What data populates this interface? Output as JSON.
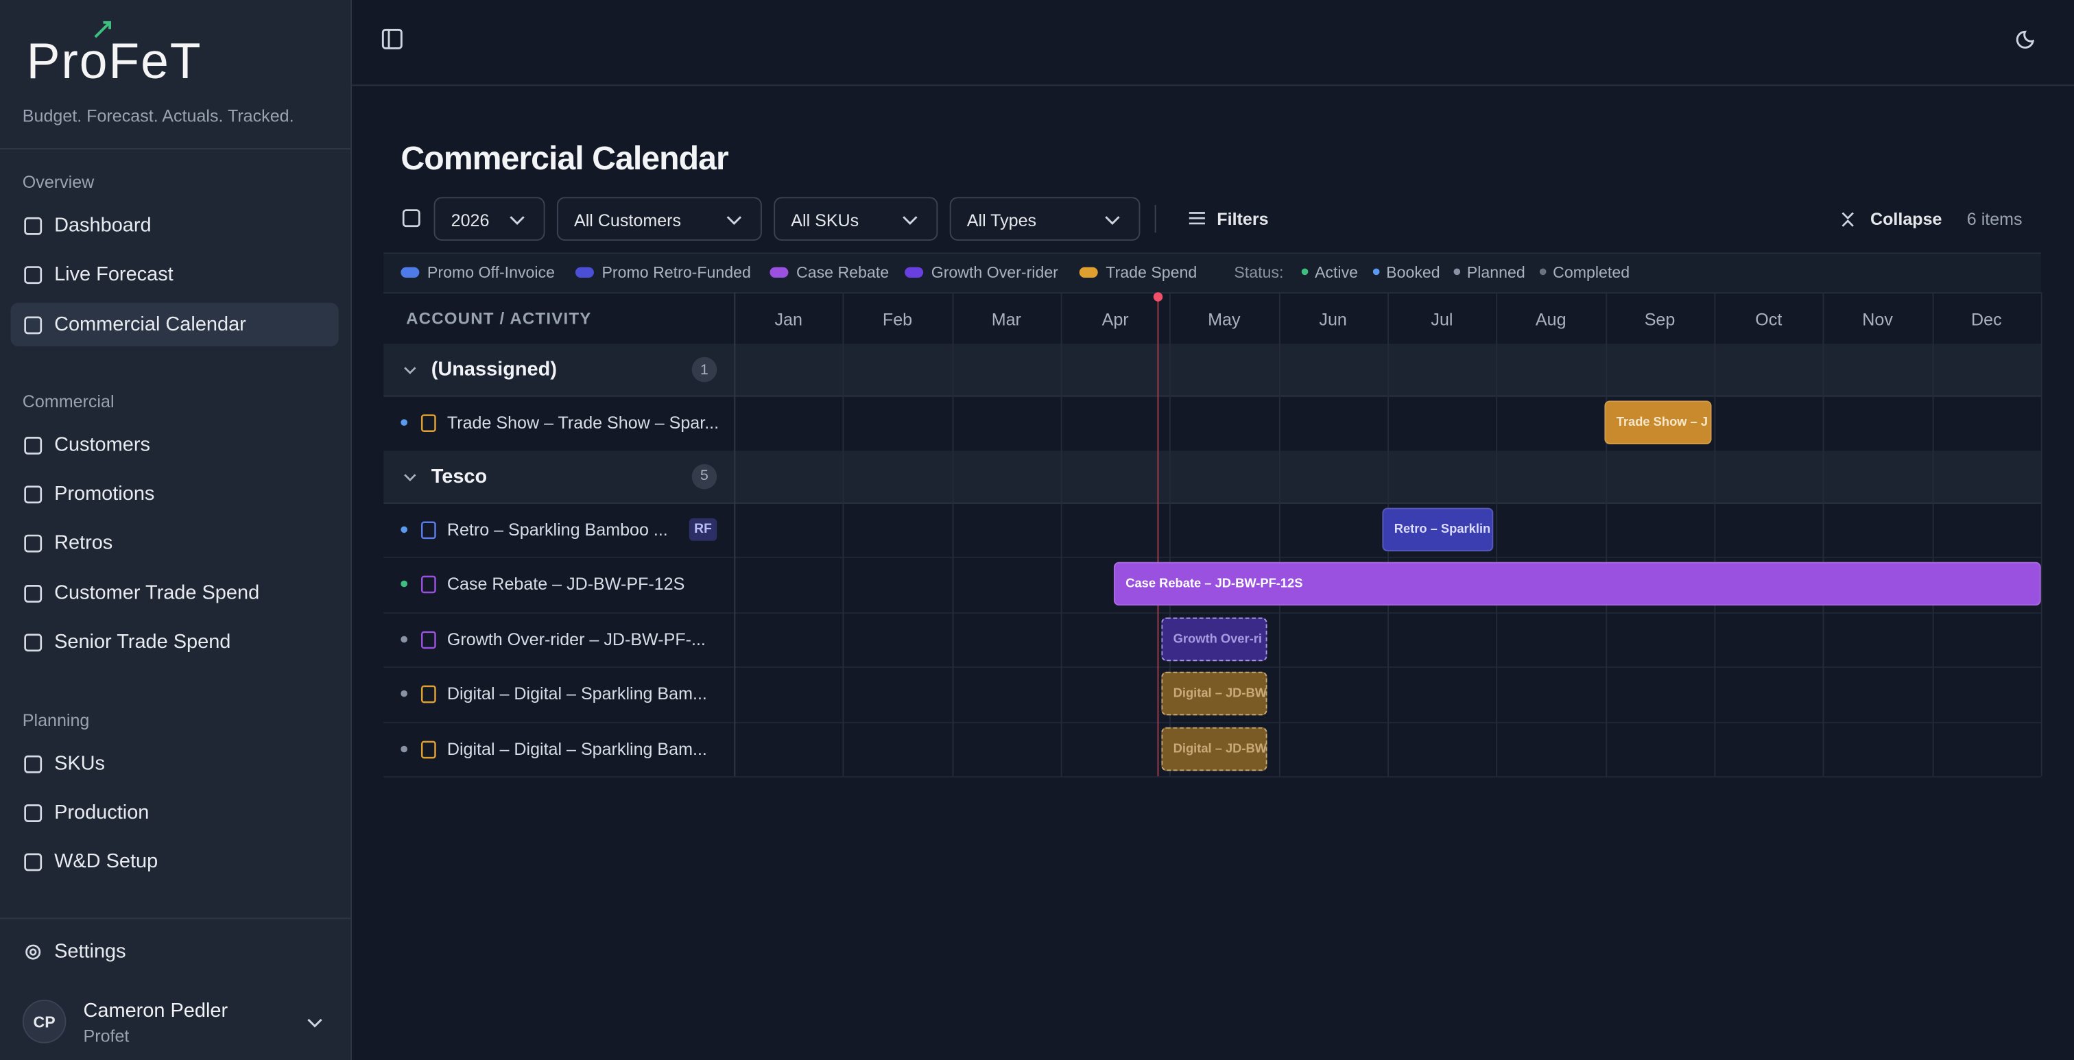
{
  "sidebar": {
    "logo": "ProFeT",
    "tagline": "Budget. Forecast. Actuals. Tracked.",
    "sections": [
      {
        "title": "Overview",
        "items": [
          "Dashboard",
          "Live Forecast",
          "Commercial Calendar"
        ]
      },
      {
        "title": "Commercial",
        "items": [
          "Customers",
          "Promotions",
          "Retros",
          "Customer Trade Spend",
          "Senior Trade Spend"
        ]
      },
      {
        "title": "Planning",
        "items": [
          "SKUs",
          "Production",
          "W&D Setup"
        ]
      }
    ],
    "settings": "Settings",
    "user": {
      "initials": "CP",
      "name": "Cameron Pedler",
      "org": "Profet"
    }
  },
  "page": {
    "title": "Commercial Calendar",
    "filters": [
      "2026",
      "All Customers",
      "All SKUs",
      "All Types"
    ],
    "filters_button": "Filters",
    "collapse": "Collapse",
    "count": "6 items"
  },
  "legend": {
    "types": [
      {
        "name": "Promo Off-Invoice",
        "color": "#4f7be8"
      },
      {
        "name": "Promo Retro-Funded",
        "color": "#4a4fd6"
      },
      {
        "name": "Case Rebate",
        "color": "#9b51e0"
      },
      {
        "name": "Growth Over-rider",
        "color": "#6a3fe0"
      },
      {
        "name": "Trade Spend",
        "color": "#e0a030"
      }
    ],
    "status_label": "Status:",
    "statuses": [
      {
        "name": "Active",
        "color": "#3fbf7f"
      },
      {
        "name": "Booked",
        "color": "#5b9bef"
      },
      {
        "name": "Planned",
        "color": "#8a93a3"
      },
      {
        "name": "Completed",
        "color": "#6b7280"
      }
    ]
  },
  "calendar": {
    "column_header": "ACCOUNT / ACTIVITY",
    "months": [
      "Jan",
      "Feb",
      "Mar",
      "Apr",
      "May",
      "Jun",
      "Jul",
      "Aug",
      "Sep",
      "Oct",
      "Nov",
      "Dec"
    ],
    "groups": [
      {
        "name": "(Unassigned)",
        "count": 1,
        "items": [
          {
            "label": "Trade Show – Trade Show – Spar...",
            "bar": "Trade Show – J"
          }
        ]
      },
      {
        "name": "Tesco",
        "count": 5,
        "items": [
          {
            "label": "Retro – Sparkling Bamboo ...",
            "badge": "RF",
            "bar": "Retro – Sparklin"
          },
          {
            "label": "Case Rebate – JD-BW-PF-12S",
            "bar": "Case Rebate – JD-BW-PF-12S"
          },
          {
            "label": "Growth Over-rider – JD-BW-PF-...",
            "bar": "Growth Over-ri"
          },
          {
            "label": "Digital – Digital – Sparkling Bam...",
            "bar": "Digital – JD-BW"
          },
          {
            "label": "Digital – Digital – Sparkling Bam...",
            "bar": "Digital – JD-BW"
          }
        ]
      }
    ]
  }
}
